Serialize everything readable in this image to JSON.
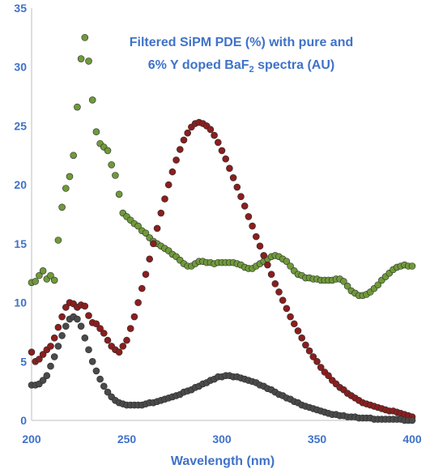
{
  "chart_data": {
    "type": "scatter",
    "title_line1": "Filtered SiPM PDE (%) with pure and",
    "title_line2_pre": "6% Y doped BaF",
    "title_line2_sub": "2",
    "title_line2_post": " spectra (AU)",
    "xlabel": "Wavelength (nm)",
    "ylabel": "",
    "xlim": [
      200,
      400
    ],
    "ylim": [
      0,
      35
    ],
    "xticks": [
      "200",
      "250",
      "300",
      "350",
      "400"
    ],
    "yticks": [
      "0",
      "5",
      "10",
      "15",
      "20",
      "25",
      "30",
      "35"
    ],
    "grid": false,
    "legend": "none",
    "series": [
      {
        "color": "#6f9a3a",
        "points": [
          [
            200,
            11.7
          ],
          [
            202,
            11.8
          ],
          [
            204,
            12.3
          ],
          [
            206,
            12.7
          ],
          [
            208,
            12.0
          ],
          [
            210,
            12.3
          ],
          [
            212,
            11.9
          ],
          [
            214,
            15.3
          ],
          [
            216,
            18.1
          ],
          [
            218,
            19.7
          ],
          [
            220,
            20.7
          ],
          [
            222,
            22.5
          ],
          [
            224,
            26.6
          ],
          [
            226,
            30.7
          ],
          [
            228,
            32.5
          ],
          [
            230,
            30.5
          ],
          [
            232,
            27.2
          ],
          [
            234,
            24.5
          ],
          [
            236,
            23.5
          ],
          [
            238,
            23.2
          ],
          [
            240,
            22.9
          ],
          [
            242,
            21.7
          ],
          [
            244,
            20.8
          ],
          [
            246,
            19.2
          ],
          [
            248,
            17.6
          ],
          [
            250,
            17.3
          ],
          [
            252,
            17.0
          ],
          [
            254,
            16.7
          ],
          [
            256,
            16.5
          ],
          [
            258,
            16.1
          ],
          [
            260,
            15.9
          ],
          [
            262,
            15.5
          ],
          [
            264,
            15.2
          ],
          [
            266,
            15.0
          ],
          [
            268,
            14.8
          ],
          [
            270,
            14.6
          ],
          [
            272,
            14.4
          ],
          [
            274,
            14.1
          ],
          [
            276,
            13.9
          ],
          [
            278,
            13.6
          ],
          [
            280,
            13.3
          ],
          [
            282,
            13.1
          ],
          [
            284,
            13.1
          ],
          [
            286,
            13.3
          ],
          [
            288,
            13.5
          ],
          [
            290,
            13.5
          ],
          [
            292,
            13.4
          ],
          [
            294,
            13.4
          ],
          [
            296,
            13.3
          ],
          [
            298,
            13.4
          ],
          [
            300,
            13.4
          ],
          [
            302,
            13.4
          ],
          [
            304,
            13.4
          ],
          [
            306,
            13.4
          ],
          [
            308,
            13.3
          ],
          [
            310,
            13.2
          ],
          [
            312,
            13.0
          ],
          [
            314,
            12.9
          ],
          [
            316,
            12.9
          ],
          [
            318,
            13.1
          ],
          [
            320,
            13.3
          ],
          [
            322,
            13.5
          ],
          [
            324,
            13.7
          ],
          [
            326,
            13.9
          ],
          [
            328,
            14.0
          ],
          [
            330,
            13.9
          ],
          [
            332,
            13.7
          ],
          [
            334,
            13.5
          ],
          [
            336,
            13.1
          ],
          [
            338,
            12.7
          ],
          [
            340,
            12.4
          ],
          [
            342,
            12.3
          ],
          [
            344,
            12.1
          ],
          [
            346,
            12.1
          ],
          [
            348,
            12.0
          ],
          [
            350,
            12.0
          ],
          [
            352,
            11.9
          ],
          [
            354,
            11.9
          ],
          [
            356,
            11.9
          ],
          [
            358,
            11.9
          ],
          [
            360,
            12.0
          ],
          [
            362,
            12.0
          ],
          [
            364,
            11.8
          ],
          [
            366,
            11.4
          ],
          [
            368,
            11.0
          ],
          [
            370,
            10.8
          ],
          [
            372,
            10.6
          ],
          [
            374,
            10.6
          ],
          [
            376,
            10.7
          ],
          [
            378,
            10.9
          ],
          [
            380,
            11.2
          ],
          [
            382,
            11.5
          ],
          [
            384,
            11.9
          ],
          [
            386,
            12.2
          ],
          [
            388,
            12.5
          ],
          [
            390,
            12.8
          ],
          [
            392,
            13.0
          ],
          [
            394,
            13.1
          ],
          [
            396,
            13.2
          ],
          [
            398,
            13.1
          ],
          [
            400,
            13.1
          ]
        ]
      },
      {
        "color": "#8b1e1e",
        "points": [
          [
            200,
            5.8
          ],
          [
            202,
            5.0
          ],
          [
            204,
            5.2
          ],
          [
            206,
            5.6
          ],
          [
            208,
            6.0
          ],
          [
            210,
            6.3
          ],
          [
            212,
            7.0
          ],
          [
            214,
            7.9
          ],
          [
            216,
            8.8
          ],
          [
            218,
            9.6
          ],
          [
            220,
            10.0
          ],
          [
            222,
            9.9
          ],
          [
            224,
            9.6
          ],
          [
            226,
            9.8
          ],
          [
            228,
            9.7
          ],
          [
            230,
            8.9
          ],
          [
            232,
            8.3
          ],
          [
            234,
            8.2
          ],
          [
            236,
            7.8
          ],
          [
            238,
            7.4
          ],
          [
            240,
            6.8
          ],
          [
            242,
            6.3
          ],
          [
            244,
            6.0
          ],
          [
            246,
            5.8
          ],
          [
            248,
            6.3
          ],
          [
            250,
            6.8
          ],
          [
            252,
            7.8
          ],
          [
            254,
            8.8
          ],
          [
            256,
            10.0
          ],
          [
            258,
            11.2
          ],
          [
            260,
            12.4
          ],
          [
            262,
            13.7
          ],
          [
            264,
            15.0
          ],
          [
            266,
            16.3
          ],
          [
            268,
            17.6
          ],
          [
            270,
            18.8
          ],
          [
            272,
            20.0
          ],
          [
            274,
            21.1
          ],
          [
            276,
            22.1
          ],
          [
            278,
            23.0
          ],
          [
            280,
            23.8
          ],
          [
            282,
            24.4
          ],
          [
            284,
            24.9
          ],
          [
            286,
            25.2
          ],
          [
            288,
            25.3
          ],
          [
            290,
            25.2
          ],
          [
            292,
            25.0
          ],
          [
            294,
            24.7
          ],
          [
            296,
            24.2
          ],
          [
            298,
            23.6
          ],
          [
            300,
            22.9
          ],
          [
            302,
            22.2
          ],
          [
            304,
            21.4
          ],
          [
            306,
            20.6
          ],
          [
            308,
            19.8
          ],
          [
            310,
            19.0
          ],
          [
            312,
            18.2
          ],
          [
            314,
            17.3
          ],
          [
            316,
            16.5
          ],
          [
            318,
            15.6
          ],
          [
            320,
            14.8
          ],
          [
            322,
            14.0
          ],
          [
            324,
            13.2
          ],
          [
            326,
            12.4
          ],
          [
            328,
            11.6
          ],
          [
            330,
            10.9
          ],
          [
            332,
            10.2
          ],
          [
            334,
            9.5
          ],
          [
            336,
            8.8
          ],
          [
            338,
            8.2
          ],
          [
            340,
            7.6
          ],
          [
            342,
            7.0
          ],
          [
            344,
            6.4
          ],
          [
            346,
            5.9
          ],
          [
            348,
            5.4
          ],
          [
            350,
            5.0
          ],
          [
            352,
            4.5
          ],
          [
            354,
            4.1
          ],
          [
            356,
            3.8
          ],
          [
            358,
            3.4
          ],
          [
            360,
            3.1
          ],
          [
            362,
            2.8
          ],
          [
            364,
            2.6
          ],
          [
            366,
            2.3
          ],
          [
            368,
            2.1
          ],
          [
            370,
            1.9
          ],
          [
            372,
            1.7
          ],
          [
            374,
            1.5
          ],
          [
            376,
            1.4
          ],
          [
            378,
            1.3
          ],
          [
            380,
            1.2
          ],
          [
            382,
            1.1
          ],
          [
            384,
            1.0
          ],
          [
            386,
            0.9
          ],
          [
            388,
            0.8
          ],
          [
            390,
            0.8
          ],
          [
            392,
            0.7
          ],
          [
            394,
            0.6
          ],
          [
            396,
            0.5
          ],
          [
            398,
            0.4
          ],
          [
            400,
            0.3
          ]
        ]
      },
      {
        "color": "#4a4a4a",
        "points": [
          [
            200,
            3.0
          ],
          [
            202,
            3.0
          ],
          [
            204,
            3.1
          ],
          [
            206,
            3.4
          ],
          [
            208,
            3.8
          ],
          [
            210,
            4.6
          ],
          [
            212,
            5.4
          ],
          [
            214,
            6.3
          ],
          [
            216,
            7.2
          ],
          [
            218,
            8.0
          ],
          [
            220,
            8.6
          ],
          [
            222,
            8.8
          ],
          [
            224,
            8.6
          ],
          [
            226,
            8.0
          ],
          [
            228,
            7.0
          ],
          [
            230,
            6.0
          ],
          [
            232,
            5.0
          ],
          [
            234,
            4.2
          ],
          [
            236,
            3.5
          ],
          [
            238,
            2.9
          ],
          [
            240,
            2.4
          ],
          [
            242,
            2.0
          ],
          [
            244,
            1.7
          ],
          [
            246,
            1.5
          ],
          [
            248,
            1.4
          ],
          [
            250,
            1.3
          ],
          [
            252,
            1.3
          ],
          [
            254,
            1.3
          ],
          [
            256,
            1.3
          ],
          [
            258,
            1.3
          ],
          [
            260,
            1.4
          ],
          [
            262,
            1.5
          ],
          [
            264,
            1.5
          ],
          [
            266,
            1.6
          ],
          [
            268,
            1.7
          ],
          [
            270,
            1.8
          ],
          [
            272,
            1.9
          ],
          [
            274,
            2.0
          ],
          [
            276,
            2.1
          ],
          [
            278,
            2.2
          ],
          [
            280,
            2.4
          ],
          [
            282,
            2.5
          ],
          [
            284,
            2.6
          ],
          [
            286,
            2.8
          ],
          [
            288,
            2.9
          ],
          [
            290,
            3.1
          ],
          [
            292,
            3.2
          ],
          [
            294,
            3.4
          ],
          [
            296,
            3.5
          ],
          [
            298,
            3.7
          ],
          [
            300,
            3.7
          ],
          [
            302,
            3.8
          ],
          [
            304,
            3.8
          ],
          [
            306,
            3.7
          ],
          [
            308,
            3.7
          ],
          [
            310,
            3.6
          ],
          [
            312,
            3.5
          ],
          [
            314,
            3.4
          ],
          [
            316,
            3.3
          ],
          [
            318,
            3.2
          ],
          [
            320,
            3.0
          ],
          [
            322,
            2.9
          ],
          [
            324,
            2.7
          ],
          [
            326,
            2.6
          ],
          [
            328,
            2.4
          ],
          [
            330,
            2.2
          ],
          [
            332,
            2.1
          ],
          [
            334,
            1.9
          ],
          [
            336,
            1.8
          ],
          [
            338,
            1.6
          ],
          [
            340,
            1.5
          ],
          [
            342,
            1.3
          ],
          [
            344,
            1.2
          ],
          [
            346,
            1.1
          ],
          [
            348,
            1.0
          ],
          [
            350,
            0.9
          ],
          [
            352,
            0.8
          ],
          [
            354,
            0.7
          ],
          [
            356,
            0.6
          ],
          [
            358,
            0.5
          ],
          [
            360,
            0.5
          ],
          [
            362,
            0.4
          ],
          [
            364,
            0.4
          ],
          [
            366,
            0.3
          ],
          [
            368,
            0.3
          ],
          [
            370,
            0.3
          ],
          [
            372,
            0.2
          ],
          [
            374,
            0.2
          ],
          [
            376,
            0.2
          ],
          [
            378,
            0.2
          ],
          [
            380,
            0.1
          ],
          [
            382,
            0.1
          ],
          [
            384,
            0.1
          ],
          [
            386,
            0.1
          ],
          [
            388,
            0.1
          ],
          [
            390,
            0.1
          ],
          [
            392,
            0.1
          ],
          [
            394,
            0.1
          ],
          [
            396,
            0.0
          ],
          [
            398,
            0.0
          ],
          [
            400,
            0.0
          ]
        ]
      }
    ]
  }
}
